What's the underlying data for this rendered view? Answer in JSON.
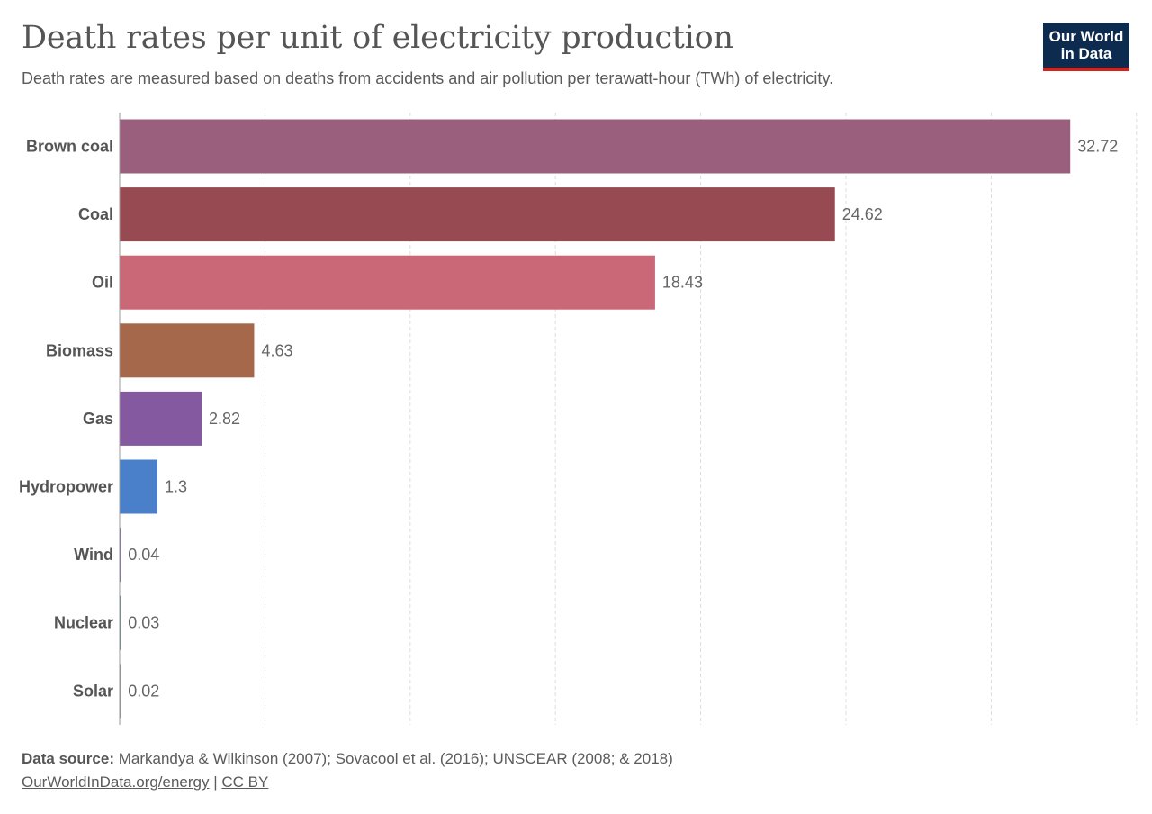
{
  "header": {
    "title": "Death rates per unit of electricity production",
    "subtitle": "Death rates are measured based on deaths from accidents and air pollution per terawatt-hour (TWh) of electricity."
  },
  "logo": {
    "line1": "Our World",
    "line2": "in Data",
    "bg_color": "#0d2a4f",
    "accent_color": "#ce261e"
  },
  "footer": {
    "source_label": "Data source:",
    "source_text": "Markandya & Wilkinson (2007); Sovacool et al. (2016); UNSCEAR (2008; & 2018)",
    "url_text": "OurWorldInData.org/energy",
    "separator": "|",
    "license_text": "CC BY"
  },
  "chart_data": {
    "type": "bar",
    "orientation": "horizontal",
    "categories": [
      "Brown coal",
      "Coal",
      "Oil",
      "Biomass",
      "Gas",
      "Hydropower",
      "Wind",
      "Nuclear",
      "Solar"
    ],
    "values": [
      32.72,
      24.62,
      18.43,
      4.63,
      2.82,
      1.3,
      0.04,
      0.03,
      0.02
    ],
    "value_labels": [
      "32.72",
      "24.62",
      "18.43",
      "4.63",
      "2.82",
      "1.3",
      "0.04",
      "0.03",
      "0.02"
    ],
    "colors": [
      "#9a5f7c",
      "#974a52",
      "#cb6878",
      "#a5684a",
      "#8459a0",
      "#4a7fca",
      "#7a5c9a",
      "#5f7f8f",
      "#8f8f8f"
    ],
    "xlim": [
      0,
      35
    ],
    "grid_step": 5,
    "grid": true,
    "legend": "none"
  }
}
